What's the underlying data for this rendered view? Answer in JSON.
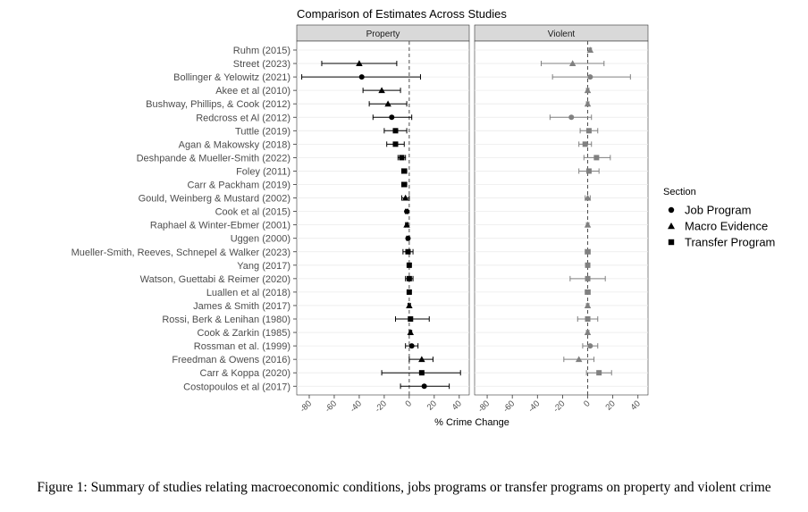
{
  "caption": "Figure 1: Summary of studies relating macroeconomic conditions, jobs programs or transfer programs on property and violent crime",
  "chart_data": {
    "type": "scatter",
    "title": "Comparison of Estimates Across Studies",
    "xlabel": "% Crime Change",
    "ylabel": "",
    "xlim": [
      -90,
      48
    ],
    "xticks": [
      -80,
      -60,
      -40,
      -20,
      0,
      20,
      40
    ],
    "reference_line": 0,
    "grid": true,
    "legend": {
      "title": "Section",
      "position": "right",
      "entries": [
        {
          "label": "Job Program",
          "shape": "circle"
        },
        {
          "label": "Macro Evidence",
          "shape": "triangle"
        },
        {
          "label": "Transfer Program",
          "shape": "square"
        }
      ]
    },
    "panels": [
      {
        "name": "Property",
        "color": "#000000"
      },
      {
        "name": "Violent",
        "color": "#808080"
      }
    ],
    "studies": [
      {
        "label": "Ruhm (2015)",
        "section": "Macro Evidence",
        "property": null,
        "violent": {
          "est": 2,
          "lo": 1,
          "hi": 3
        }
      },
      {
        "label": "Street (2023)",
        "section": "Macro Evidence",
        "property": {
          "est": -40,
          "lo": -70,
          "hi": -10
        },
        "violent": {
          "est": -12,
          "lo": -37,
          "hi": 13
        }
      },
      {
        "label": "Bollinger & Yelowitz (2021)",
        "section": "Job Program",
        "property": {
          "est": -38,
          "lo": -86,
          "hi": 9
        },
        "violent": {
          "est": 2,
          "lo": -28,
          "hi": 34
        }
      },
      {
        "label": "Akee et al (2010)",
        "section": "Macro Evidence",
        "property": {
          "est": -22,
          "lo": -37,
          "hi": -7
        },
        "violent": {
          "est": 0,
          "lo": -1,
          "hi": 1
        }
      },
      {
        "label": "Bushway, Phillips, & Cook (2012)",
        "section": "Macro Evidence",
        "property": {
          "est": -17,
          "lo": -32,
          "hi": -2
        },
        "violent": {
          "est": 0,
          "lo": -1,
          "hi": 1
        }
      },
      {
        "label": "Redcross et Al (2012)",
        "section": "Job Program",
        "property": {
          "est": -14,
          "lo": -29,
          "hi": 2
        },
        "violent": {
          "est": -13,
          "lo": -30,
          "hi": 3
        }
      },
      {
        "label": "Tuttle (2019)",
        "section": "Transfer Program",
        "property": {
          "est": -11,
          "lo": -20,
          "hi": -2
        },
        "violent": {
          "est": 1,
          "lo": -6,
          "hi": 8
        }
      },
      {
        "label": "Agan & Makowsky (2018)",
        "section": "Transfer Program",
        "property": {
          "est": -11,
          "lo": -18,
          "hi": -4
        },
        "violent": {
          "est": -2,
          "lo": -7,
          "hi": 3
        }
      },
      {
        "label": "Deshpande & Mueller-Smith (2022)",
        "section": "Transfer Program",
        "property": {
          "est": -6,
          "lo": -9,
          "hi": -3
        },
        "violent": {
          "est": 7,
          "lo": -3,
          "hi": 18
        }
      },
      {
        "label": "Foley (2011)",
        "section": "Transfer Program",
        "property": {
          "est": -4,
          "lo": -6,
          "hi": -2
        },
        "violent": {
          "est": 1,
          "lo": -7,
          "hi": 9
        }
      },
      {
        "label": "Carr & Packham (2019)",
        "section": "Transfer Program",
        "property": {
          "est": -4,
          "lo": -6,
          "hi": -2
        },
        "violent": null
      },
      {
        "label": "Gould, Weinberg & Mustard (2002)",
        "section": "Macro Evidence",
        "property": {
          "est": -3,
          "lo": -6,
          "hi": 0
        },
        "violent": {
          "est": 0,
          "lo": -2,
          "hi": 2
        }
      },
      {
        "label": "Cook et al (2015)",
        "section": "Job Program",
        "property": {
          "est": -2,
          "lo": -3,
          "hi": -1
        },
        "violent": null
      },
      {
        "label": "Raphael & Winter-Ebmer (2001)",
        "section": "Macro Evidence",
        "property": {
          "est": -2,
          "lo": -3,
          "hi": -1
        },
        "violent": {
          "est": 0,
          "lo": -1,
          "hi": 1
        }
      },
      {
        "label": "Uggen (2000)",
        "section": "Job Program",
        "property": {
          "est": -1,
          "lo": -2,
          "hi": 0
        },
        "violent": null
      },
      {
        "label": "Mueller-Smith, Reeves, Schnepel & Walker (2023)",
        "section": "Transfer Program",
        "property": {
          "est": -1,
          "lo": -5,
          "hi": 3
        },
        "violent": {
          "est": 0,
          "lo": -2,
          "hi": 2
        }
      },
      {
        "label": "Yang (2017)",
        "section": "Transfer Program",
        "property": {
          "est": 0,
          "lo": -1,
          "hi": 1
        },
        "violent": {
          "est": 0,
          "lo": -1,
          "hi": 1
        }
      },
      {
        "label": "Watson, Guettabi & Reimer (2020)",
        "section": "Transfer Program",
        "property": {
          "est": 0,
          "lo": -3,
          "hi": 3
        },
        "violent": {
          "est": 0,
          "lo": -14,
          "hi": 14
        }
      },
      {
        "label": "Luallen et al (2018)",
        "section": "Transfer Program",
        "property": {
          "est": 0,
          "lo": -1,
          "hi": 1
        },
        "violent": {
          "est": 0,
          "lo": -2,
          "hi": 2
        }
      },
      {
        "label": "James & Smith (2017)",
        "section": "Macro Evidence",
        "property": {
          "est": 0,
          "lo": -1,
          "hi": 1
        },
        "violent": {
          "est": 0,
          "lo": -1,
          "hi": 1
        }
      },
      {
        "label": "Rossi, Berk & Lenihan (1980)",
        "section": "Transfer Program",
        "property": {
          "est": 1,
          "lo": -11,
          "hi": 16
        },
        "violent": {
          "est": 0,
          "lo": -8,
          "hi": 8
        }
      },
      {
        "label": "Cook &  Zarkin  (1985)",
        "section": "Macro Evidence",
        "property": {
          "est": 1,
          "lo": 0,
          "hi": 2
        },
        "violent": {
          "est": 0,
          "lo": -1,
          "hi": 1
        }
      },
      {
        "label": "Rossman et al. (1999)",
        "section": "Job Program",
        "property": {
          "est": 2,
          "lo": -3,
          "hi": 7
        },
        "violent": {
          "est": 2,
          "lo": -4,
          "hi": 8
        }
      },
      {
        "label": "Freedman & Owens (2016)",
        "section": "Macro Evidence",
        "property": {
          "est": 10,
          "lo": 0,
          "hi": 19
        },
        "violent": {
          "est": -7,
          "lo": -19,
          "hi": 5
        }
      },
      {
        "label": "Carr & Koppa (2020)",
        "section": "Transfer Program",
        "property": {
          "est": 10,
          "lo": -22,
          "hi": 41
        },
        "violent": {
          "est": 9,
          "lo": -1,
          "hi": 19
        }
      },
      {
        "label": "Costopoulos et al (2017)",
        "section": "Job Program",
        "property": {
          "est": 12,
          "lo": -7,
          "hi": 32
        },
        "violent": null
      }
    ]
  }
}
